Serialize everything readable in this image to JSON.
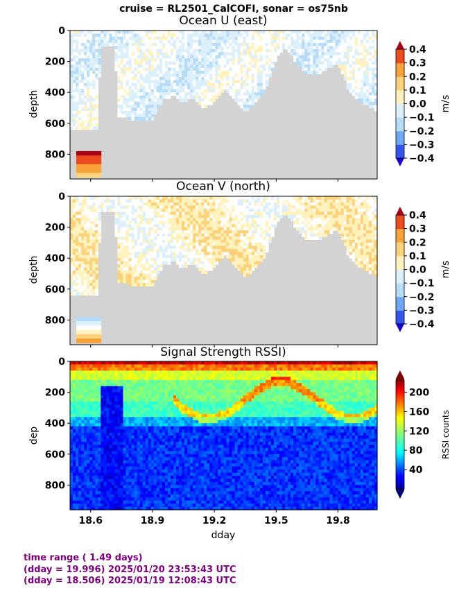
{
  "suptitle": "cruise = RL2501_CalCOFI,  sonar = os75nb",
  "chart_data": [
    {
      "type": "heatmap",
      "title": "Ocean U (east)",
      "xlabel": "",
      "ylabel": "depth",
      "xlim": [
        18.5,
        19.99
      ],
      "ylim": [
        960,
        0
      ],
      "yticks": [
        "0",
        "200",
        "400",
        "600",
        "800"
      ],
      "colorbar": {
        "label": "m/s",
        "range": [
          -0.4,
          0.4
        ],
        "ticks": [
          "0.4",
          "0.3",
          "0.2",
          "0.1",
          "0.0",
          "−0.1",
          "−0.2",
          "−0.3",
          "−0.4"
        ]
      },
      "data_coverage": [
        [
          18.506,
          640
        ],
        [
          18.63,
          640
        ],
        [
          18.65,
          100
        ],
        [
          18.72,
          100
        ],
        [
          18.73,
          550
        ],
        [
          18.83,
          590
        ],
        [
          18.9,
          570
        ],
        [
          18.95,
          450
        ],
        [
          19.0,
          420
        ],
        [
          19.05,
          470
        ],
        [
          19.1,
          430
        ],
        [
          19.15,
          510
        ],
        [
          19.2,
          460
        ],
        [
          19.25,
          380
        ],
        [
          19.3,
          450
        ],
        [
          19.35,
          530
        ],
        [
          19.4,
          460
        ],
        [
          19.45,
          380
        ],
        [
          19.5,
          180
        ],
        [
          19.55,
          110
        ],
        [
          19.6,
          220
        ],
        [
          19.65,
          280
        ],
        [
          19.7,
          290
        ],
        [
          19.75,
          250
        ],
        [
          19.8,
          210
        ],
        [
          19.85,
          380
        ],
        [
          19.9,
          460
        ],
        [
          19.996,
          520
        ]
      ]
    },
    {
      "type": "heatmap",
      "title": "Ocean V (north)",
      "xlabel": "",
      "ylabel": "depth",
      "xlim": [
        18.5,
        19.99
      ],
      "ylim": [
        960,
        0
      ],
      "yticks": [
        "0",
        "200",
        "400",
        "600",
        "800"
      ],
      "colorbar": {
        "label": "m/s",
        "range": [
          -0.4,
          0.4
        ],
        "ticks": [
          "0.4",
          "0.3",
          "0.2",
          "0.1",
          "0.0",
          "−0.1",
          "−0.2",
          "−0.3",
          "−0.4"
        ]
      }
    },
    {
      "type": "heatmap",
      "title": "Signal Strength RSSI)",
      "xlabel": "dday",
      "ylabel": "dep",
      "xlim": [
        18.5,
        19.99
      ],
      "ylim": [
        960,
        0
      ],
      "yticks": [
        "0",
        "200",
        "400",
        "600",
        "800"
      ],
      "xticks": [
        "18.6",
        "18.9",
        "19.2",
        "19.5",
        "19.8"
      ],
      "colorbar": {
        "label": "RSSI counts",
        "range": [
          0,
          225
        ],
        "ticks": [
          "200",
          "160",
          "120",
          "80",
          "40"
        ]
      }
    }
  ],
  "footer": {
    "line1": "time range ( 1.49 days)",
    "line2": "(dday = 19.996) 2025/01/20 23:53:43 UTC",
    "line3": "(dday = 18.506) 2025/01/19 12:08:43 UTC"
  },
  "colors": {
    "nodata": "#d3d3d3",
    "text": "#000000",
    "footer": "#800080"
  }
}
